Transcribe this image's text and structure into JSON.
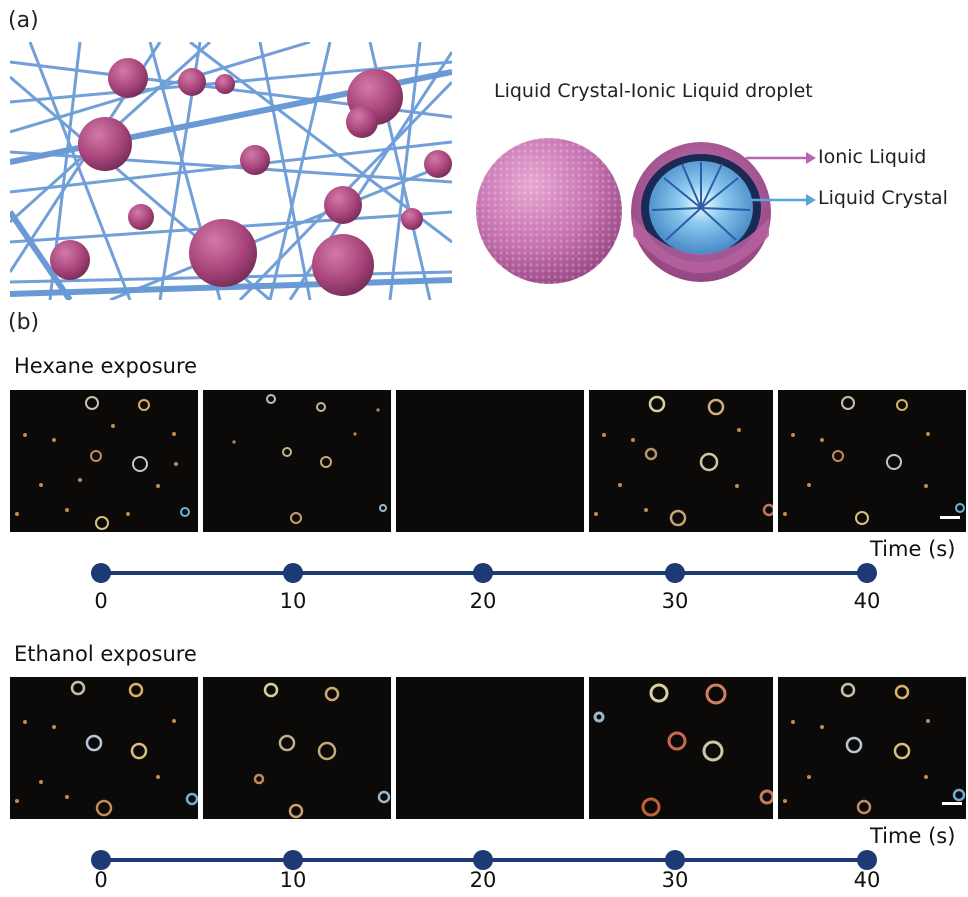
{
  "panel_a": {
    "label": "(a)",
    "droplet_title": "Liquid Crystal-Ionic Liquid droplet",
    "ionic_label": "Ionic Liquid",
    "lc_label": "Liquid Crystal",
    "colors": {
      "fiber": "#6a9ad6",
      "droplet": "#b24d84",
      "ionic_arrow": "#b966b0",
      "lc_arrow": "#5aa4dd",
      "lc_core": "#5fa9df"
    }
  },
  "panel_b": {
    "label": "(b)",
    "rows": [
      {
        "title": "Hexane exposure",
        "axis_title": "Time (s)",
        "ticks": [
          "0",
          "10",
          "20",
          "30",
          "40"
        ]
      },
      {
        "title": "Ethanol exposure",
        "axis_title": "Time (s)",
        "ticks": [
          "0",
          "10",
          "20",
          "30",
          "40"
        ]
      }
    ],
    "colors": {
      "timeline": "#1d3a75",
      "frame_bg": "#0b0a08"
    }
  }
}
